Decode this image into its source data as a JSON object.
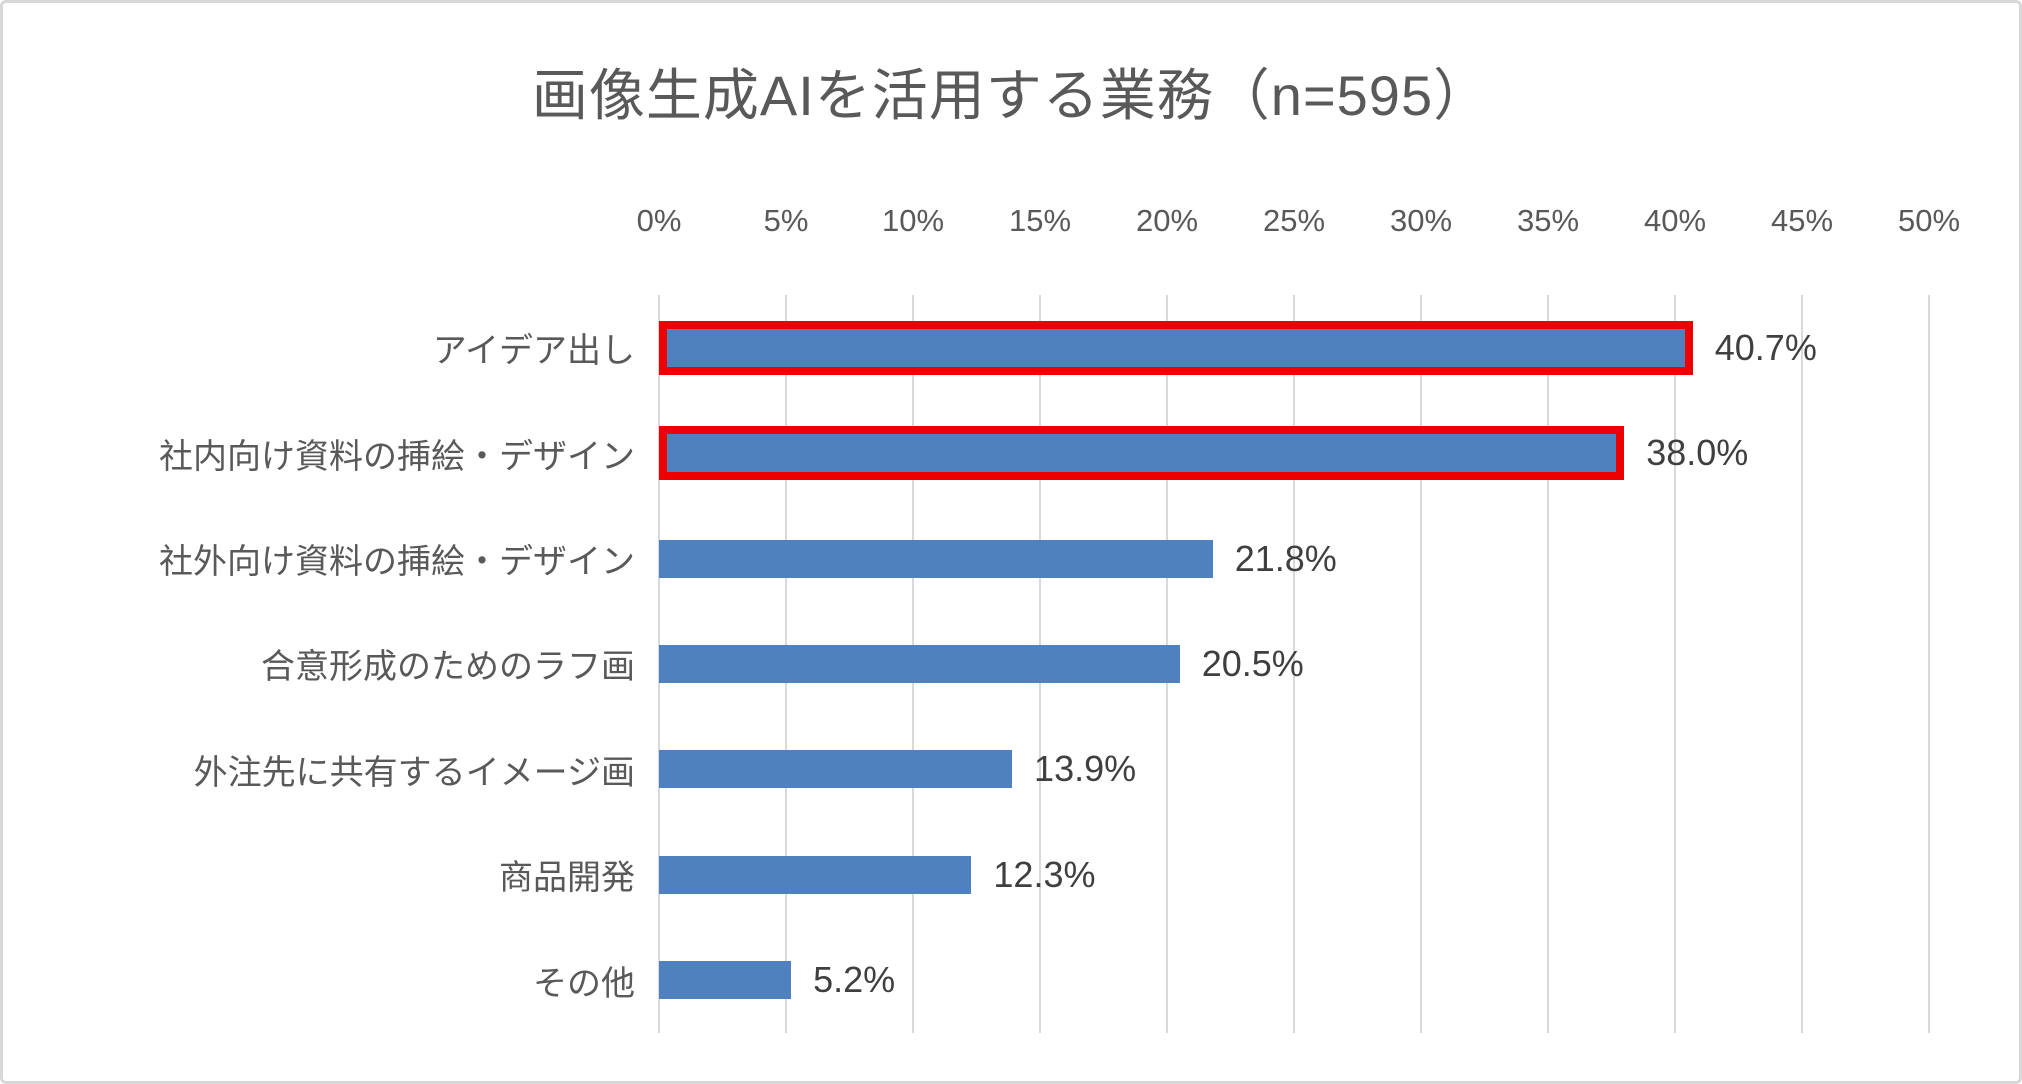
{
  "chart_data": {
    "type": "bar",
    "orientation": "horizontal",
    "title": "画像生成AIを活用する業務（n=595）",
    "categories": [
      "アイデア出し",
      "社内向け資料の挿絵・デザイン",
      "社外向け資料の挿絵・デザイン",
      "合意形成のためのラフ画",
      "外注先に共有するイメージ画",
      "商品開発",
      "その他"
    ],
    "values": [
      40.7,
      38.0,
      21.8,
      20.5,
      13.9,
      12.3,
      5.2
    ],
    "value_labels": [
      "40.7%",
      "38.0%",
      "21.8%",
      "20.5%",
      "13.9%",
      "12.3%",
      "5.2%"
    ],
    "highlighted": [
      true,
      true,
      false,
      false,
      false,
      false,
      false
    ],
    "x_ticks": [
      "0%",
      "5%",
      "10%",
      "15%",
      "20%",
      "25%",
      "30%",
      "35%",
      "40%",
      "45%",
      "50%"
    ],
    "xlim": [
      0,
      50
    ],
    "grid": true,
    "legend": "none",
    "colors": {
      "bar": "#4e81bd",
      "highlight_border": "#ee0000",
      "gridline": "#d9d9d9",
      "title_text": "#595959",
      "axis_text": "#595959",
      "value_text": "#3f3f3f",
      "background": "#ffffff",
      "card_border": "#d8d8d8"
    }
  }
}
